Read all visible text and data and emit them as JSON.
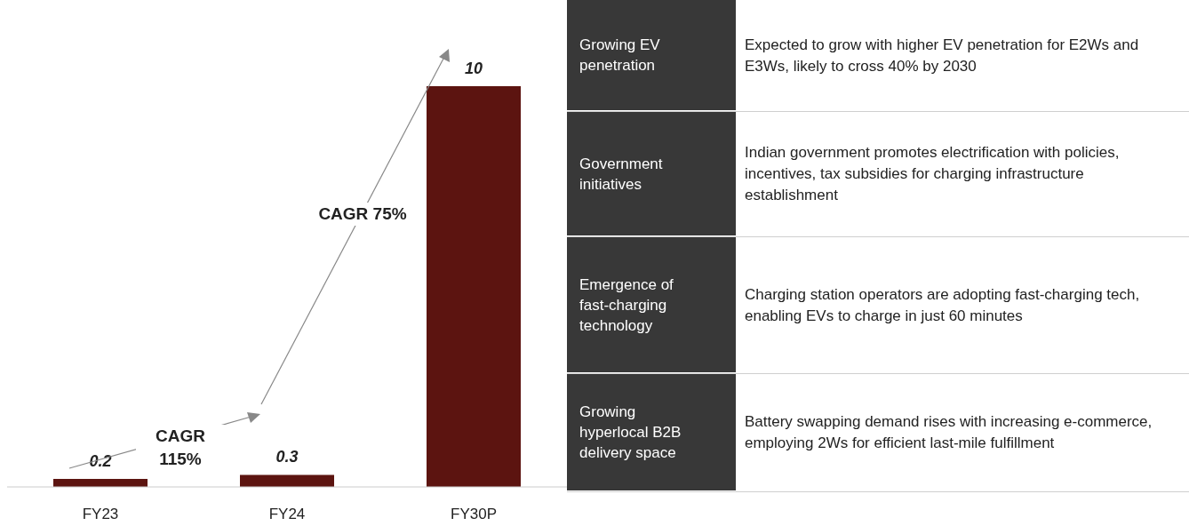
{
  "chart_data": [
    {
      "type": "bar",
      "categories": [
        "FY23",
        "FY24",
        "FY30P"
      ],
      "values": [
        0.2,
        0.3,
        10
      ],
      "color": "#5c1410",
      "data_labels": true,
      "annotations": [
        "CAGR 115%",
        "CAGR 75%"
      ]
    },
    {
      "type": "other",
      "categories": [
        "Growing EV penetration",
        "Government initiatives",
        "Emergence of fast-charging technology",
        "Growing hyperlocal B2B delivery space"
      ],
      "annotations": [
        "Expected to grow with higher EV penetration for E2Ws and E3Ws, likely to cross 40% by 2030",
        "Indian government promotes electrification with policies, incentives, tax subsidies for charging infrastructure establishment",
        "Charging station operators are adopting fast-charging tech, enabling EVs to charge in just 60 minutes",
        "Battery swapping demand rises with increasing e-commerce, employing 2Ws for efficient last-mile fulfillment"
      ]
    }
  ]
}
